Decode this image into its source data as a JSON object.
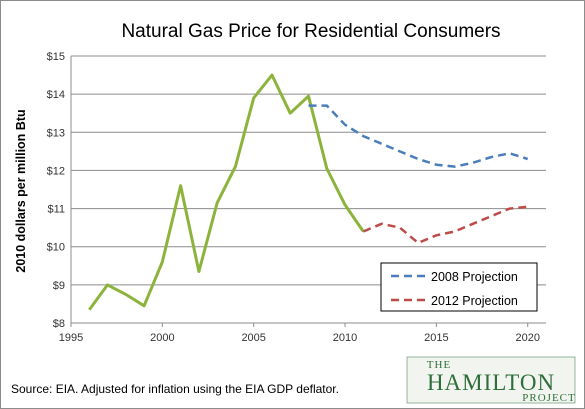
{
  "chart_data": {
    "type": "line",
    "title": "Natural Gas Price for Residential Consumers",
    "ylabel": "2010 dollars per million Btu",
    "xlabel": "",
    "xlim": [
      1995,
      2021
    ],
    "ylim": [
      8,
      15
    ],
    "x_ticks": [
      1995,
      2000,
      2005,
      2010,
      2015,
      2020
    ],
    "y_ticks": [
      8,
      9,
      10,
      11,
      12,
      13,
      14,
      15
    ],
    "y_tick_labels": [
      "$8",
      "$9",
      "$10",
      "$11",
      "$12",
      "$13",
      "$14",
      "$15"
    ],
    "grid": "horizontal",
    "legend_position": "bottom-right",
    "source_note": "Source: EIA. Adjusted for inflation using the EIA GDP deflator.",
    "series": [
      {
        "name": "",
        "color": "#8cb43c",
        "dash": "solid",
        "x": [
          1996,
          1997,
          1998,
          1999,
          2000,
          2001,
          2002,
          2003,
          2004,
          2005,
          2006,
          2007,
          2008,
          2009,
          2010,
          2011
        ],
        "values": [
          8.35,
          9.0,
          8.75,
          8.45,
          9.6,
          11.6,
          9.35,
          11.15,
          12.1,
          13.9,
          14.5,
          13.5,
          13.95,
          12.05,
          11.1,
          10.4
        ]
      },
      {
        "name": "2008 Projection",
        "color": "#4a7ebb",
        "dash": "dashed",
        "x": [
          2008,
          2009,
          2010,
          2011,
          2012,
          2013,
          2014,
          2015,
          2016,
          2017,
          2018,
          2019,
          2020
        ],
        "values": [
          13.7,
          13.7,
          13.2,
          12.9,
          12.7,
          12.5,
          12.3,
          12.15,
          12.1,
          12.2,
          12.35,
          12.45,
          12.3
        ]
      },
      {
        "name": "2012 Projection",
        "color": "#be4b48",
        "dash": "dashed",
        "x": [
          2011,
          2012,
          2013,
          2014,
          2015,
          2016,
          2017,
          2018,
          2019,
          2020
        ],
        "values": [
          10.4,
          10.6,
          10.5,
          10.1,
          10.3,
          10.4,
          10.6,
          10.8,
          11.0,
          11.05
        ]
      }
    ]
  },
  "logo": {
    "the": "THE",
    "name": "HAMILTON",
    "project": "PROJECT"
  },
  "colors": {
    "logo": "#2e6e3a",
    "grid": "#8c8c8c"
  }
}
